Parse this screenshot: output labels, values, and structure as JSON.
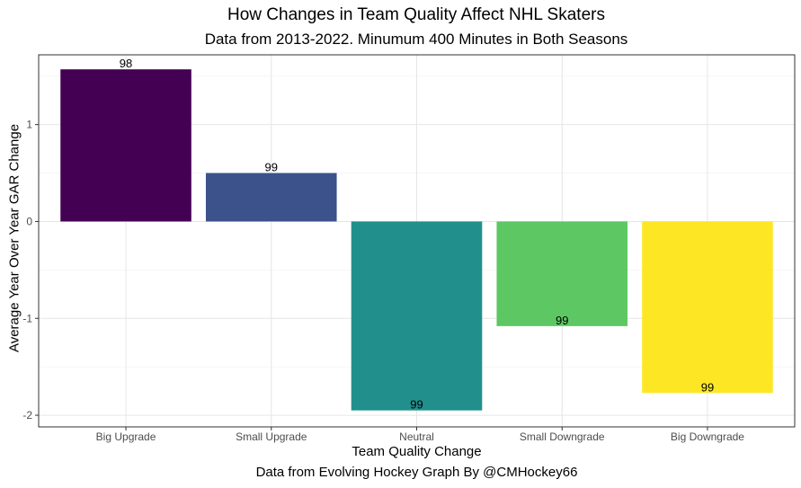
{
  "chart_data": {
    "type": "bar",
    "title": "How Changes in Team Quality Affect NHL Skaters",
    "subtitle": "Data from 2013-2022. Minumum 400 Minutes in Both Seasons",
    "xlabel": "Team Quality Change",
    "ylabel": "Average Year Over Year GAR Change",
    "caption": "Data from Evolving Hockey Graph By @CMHockey66",
    "categories": [
      "Big Upgrade",
      "Small Upgrade",
      "Neutral",
      "Small Downgrade",
      "Big Downgrade"
    ],
    "values": [
      1.57,
      0.5,
      -1.95,
      -1.08,
      -1.77
    ],
    "data_labels": [
      "98",
      "99",
      "99",
      "99",
      "99"
    ],
    "colors": [
      "#440154",
      "#3b528b",
      "#21908c",
      "#5dc863",
      "#fde725"
    ],
    "yticks": [
      1,
      0,
      -1,
      -2
    ],
    "ytick_labels": [
      "1",
      "0",
      "-1",
      "-2"
    ],
    "ylim": [
      -2.12,
      1.72
    ],
    "grid": true,
    "legend": "none"
  }
}
